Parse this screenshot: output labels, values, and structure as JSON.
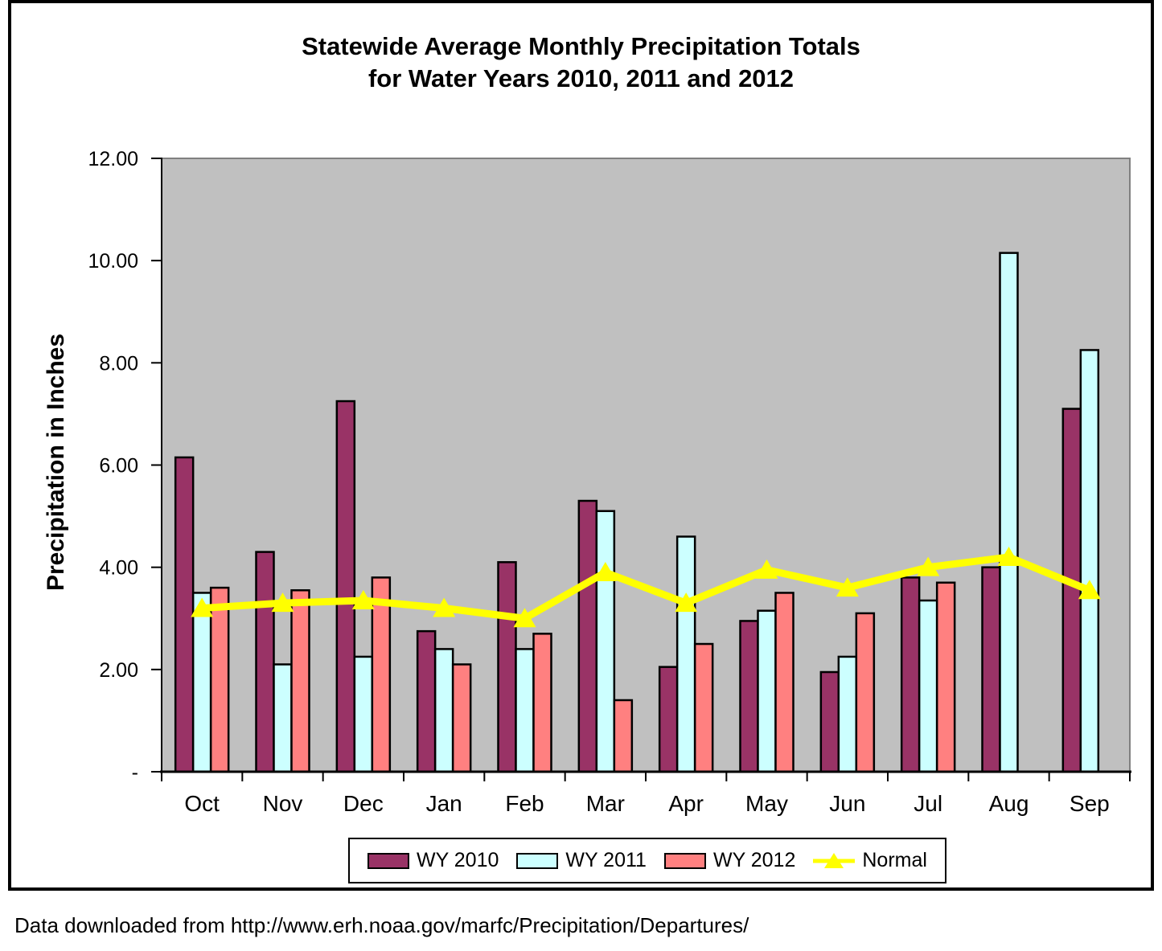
{
  "page": {
    "footer": "Data downloaded from http://www.erh.noaa.gov/marfc/Precipitation/Departures/"
  },
  "chart_data": {
    "type": "bar",
    "subtype": "grouped-bars-with-line-overlay",
    "title_line1": "Statewide Average Monthly Precipitation Totals",
    "title_line2": "for Water Years 2010, 2011 and 2012",
    "ylabel": "Precipitation in Inches",
    "xlabel": "",
    "categories": [
      "Oct",
      "Nov",
      "Dec",
      "Jan",
      "Feb",
      "Mar",
      "Apr",
      "May",
      "Jun",
      "Jul",
      "Aug",
      "Sep"
    ],
    "series": [
      {
        "name": "WY 2010",
        "type": "bar",
        "color": "#993366",
        "values": [
          6.15,
          4.3,
          7.25,
          2.75,
          4.1,
          5.3,
          2.05,
          2.95,
          1.95,
          3.8,
          4.0,
          7.1
        ]
      },
      {
        "name": "WY 2011",
        "type": "bar",
        "color": "#CCFFFF",
        "values": [
          3.5,
          2.1,
          2.25,
          2.4,
          2.4,
          5.1,
          4.6,
          3.15,
          2.25,
          3.35,
          10.15,
          8.25
        ]
      },
      {
        "name": "WY 2012",
        "type": "bar",
        "color": "#FF8080",
        "values": [
          3.6,
          3.55,
          3.8,
          2.1,
          2.7,
          1.4,
          2.5,
          3.5,
          3.1,
          3.7,
          null,
          null
        ]
      },
      {
        "name": "Normal",
        "type": "line",
        "marker": "triangle",
        "color": "#FFFF00",
        "values": [
          3.2,
          3.3,
          3.35,
          3.2,
          3.0,
          3.9,
          3.3,
          3.95,
          3.6,
          4.0,
          4.2,
          3.55
        ]
      }
    ],
    "ylim": [
      0,
      12
    ],
    "y_ticks": [
      {
        "value": 0,
        "label": "-"
      },
      {
        "value": 2,
        "label": "2.00"
      },
      {
        "value": 4,
        "label": "4.00"
      },
      {
        "value": 6,
        "label": "6.00"
      },
      {
        "value": 8,
        "label": "8.00"
      },
      {
        "value": 10,
        "label": "10.00"
      },
      {
        "value": 12,
        "label": "12.00"
      }
    ],
    "grid": false,
    "legend_position": "bottom",
    "plot_bg": "#C0C0C0",
    "plot_border_color": "#808080",
    "axis_color": "#000000",
    "bar_outline_color": "#000000"
  }
}
